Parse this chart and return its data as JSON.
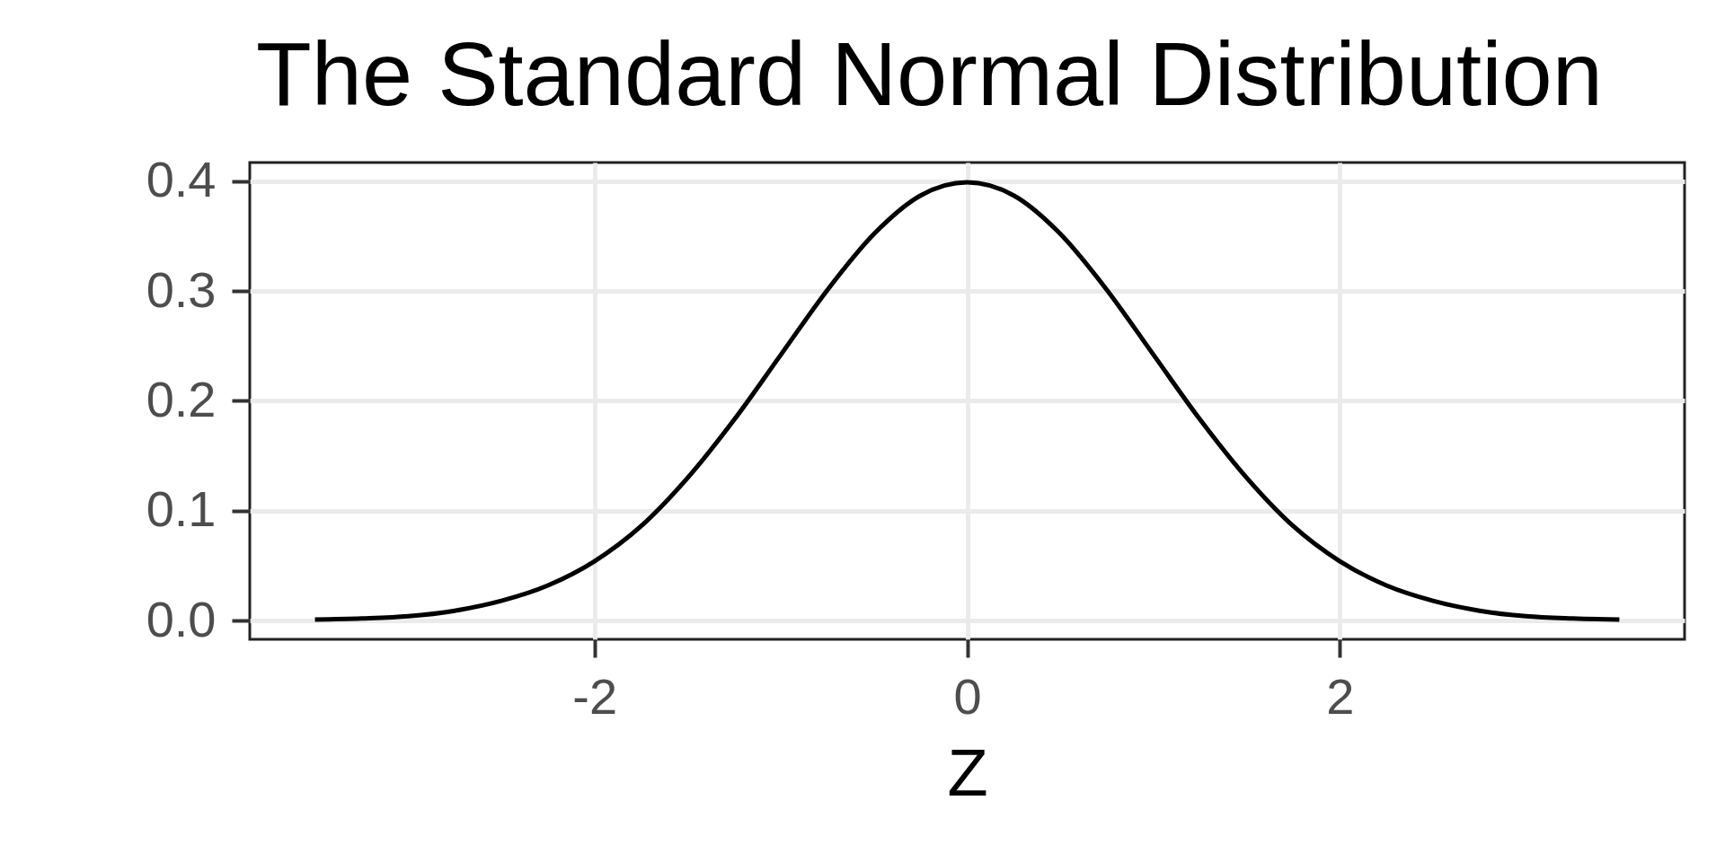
{
  "chart_data": {
    "type": "line",
    "title": "The Standard Normal Distribution",
    "xlabel": "Z",
    "x": [
      -3.5,
      -3.25,
      -3,
      -2.75,
      -2.5,
      -2.25,
      -2,
      -1.75,
      -1.5,
      -1.25,
      -1,
      -0.75,
      -0.5,
      -0.25,
      0,
      0.25,
      0.5,
      0.75,
      1,
      1.25,
      1.5,
      1.75,
      2,
      2.25,
      2.5,
      2.75,
      3,
      3.25,
      3.5
    ],
    "series": [
      {
        "color": "#000000",
        "values": [
          0.001,
          0.002,
          0.004,
          0.009,
          0.018,
          0.032,
          0.054,
          0.086,
          0.13,
          0.183,
          0.242,
          0.301,
          0.352,
          0.387,
          0.399,
          0.387,
          0.352,
          0.301,
          0.242,
          0.183,
          0.13,
          0.086,
          0.054,
          0.032,
          0.018,
          0.009,
          0.004,
          0.002,
          0.001
        ]
      }
    ],
    "xlim": [
      -3.85,
      3.85
    ],
    "ylim": [
      -0.017,
      0.417
    ],
    "xticks": [
      -2,
      0,
      2
    ],
    "yticks": [
      {
        "value": 0,
        "label": "0.0"
      },
      0.1,
      0.2,
      0.3,
      0.4
    ],
    "grid": true,
    "marker": "none",
    "line_style": "solid"
  }
}
